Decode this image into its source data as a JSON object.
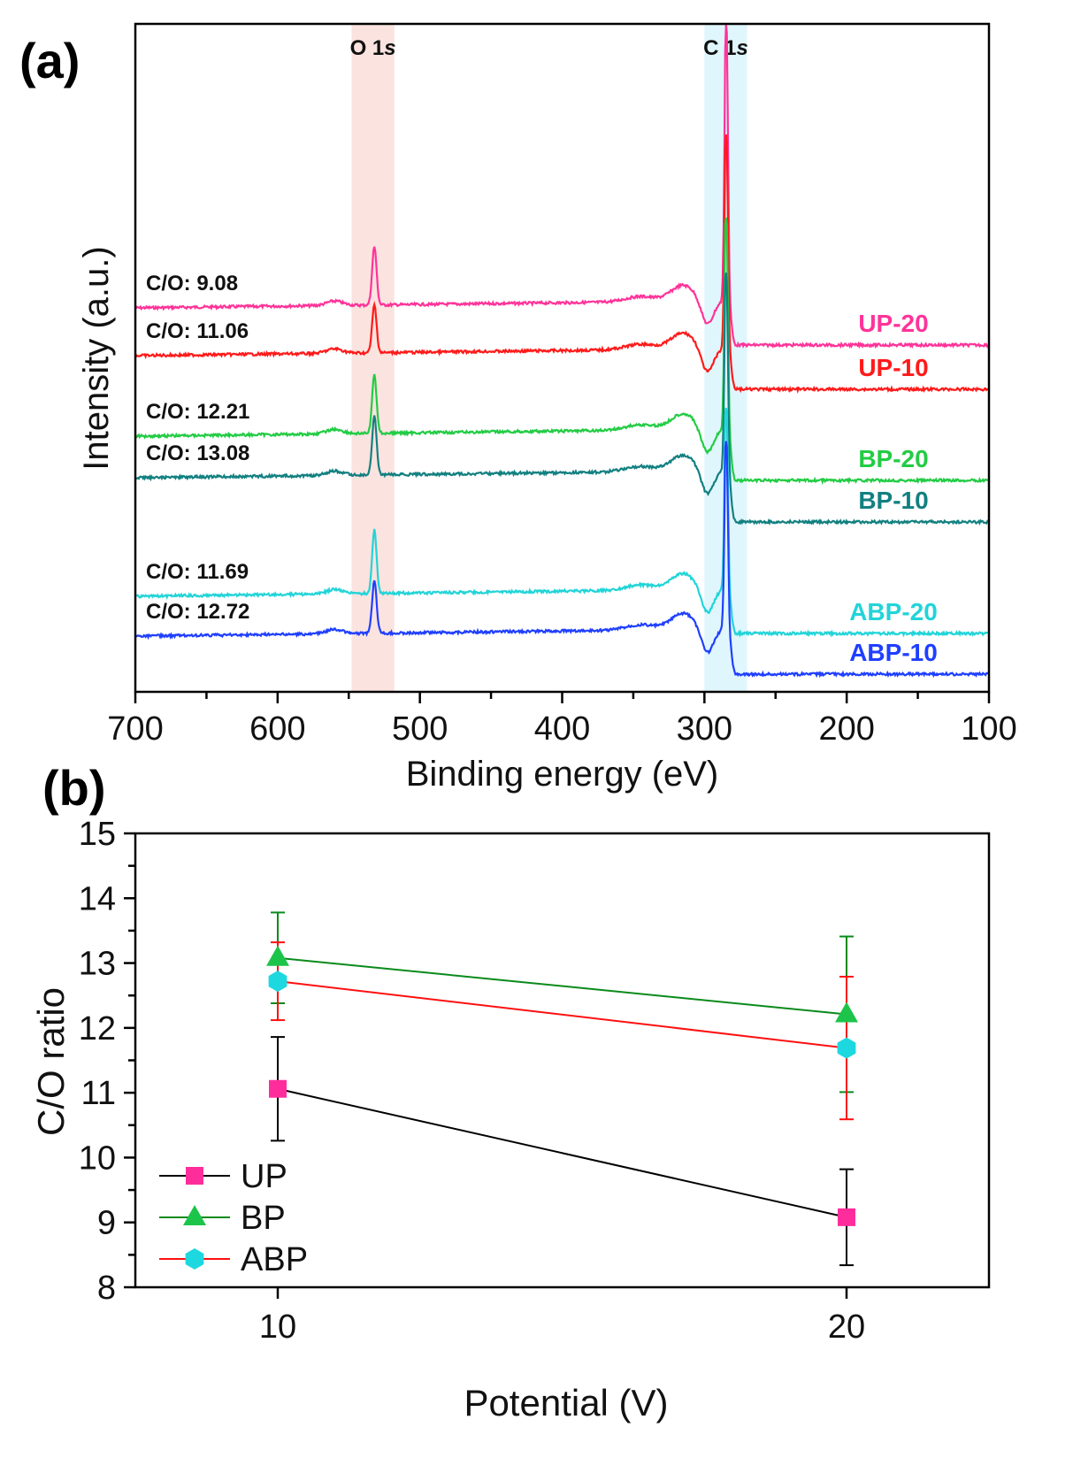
{
  "chart_data": [
    {
      "panel_label": "(a)",
      "type": "line",
      "title": "",
      "xlabel": "Binding energy (eV)",
      "ylabel": "Intensity (a.u.)",
      "xlim": [
        700,
        100
      ],
      "x_reversed": true,
      "x_ticks": [
        700,
        600,
        500,
        400,
        300,
        200,
        100
      ],
      "y_ticks_shown": false,
      "grid": false,
      "highlight_bands": [
        {
          "label": "O 1s",
          "label_main": "O 1",
          "label_italic": "s",
          "range": [
            548,
            518
          ],
          "color": "#fbe3df"
        },
        {
          "label": "C 1s",
          "label_main": "C 1",
          "label_italic": "s",
          "range": [
            300,
            270
          ],
          "color": "#dff6fc"
        }
      ],
      "series": [
        {
          "name": "UP-20",
          "color": "#ff3399",
          "co_label": "C/O: 9.08",
          "baseline_offset": 5,
          "o1s_peak": 0.55,
          "c1s_peak": 4.3
        },
        {
          "name": "UP-10",
          "color": "#ff1a1a",
          "co_label": "C/O: 11.06",
          "baseline_offset": 4.3,
          "o1s_peak": 0.45,
          "c1s_peak": 3.4
        },
        {
          "name": "BP-20",
          "color": "#22cc44",
          "co_label": "C/O: 12.21",
          "baseline_offset": 3.1,
          "o1s_peak": 0.55,
          "c1s_peak": 3.5
        },
        {
          "name": "BP-10",
          "color": "#128080",
          "co_label": "C/O: 13.08",
          "baseline_offset": 2.5,
          "o1s_peak": 0.55,
          "c1s_peak": 3.3
        },
        {
          "name": "ABP-20",
          "color": "#22d4d8",
          "co_label": "C/O: 11.69",
          "baseline_offset": 1.3,
          "o1s_peak": 0.6,
          "c1s_peak": 3.0
        },
        {
          "name": "ABP-10",
          "color": "#1f3fff",
          "co_label": "C/O: 12.72",
          "baseline_offset": 0.7,
          "o1s_peak": 0.5,
          "c1s_peak": 3.1
        }
      ]
    },
    {
      "panel_label": "(b)",
      "type": "line",
      "title": "",
      "xlabel": "Potential (V)",
      "ylabel": "C/O ratio",
      "x": [
        10,
        20
      ],
      "x_ticks": [
        10,
        20
      ],
      "xlim": [
        7.5,
        22.5
      ],
      "ylim": [
        8,
        15
      ],
      "y_ticks": [
        8,
        9,
        10,
        11,
        12,
        13,
        14,
        15
      ],
      "grid": false,
      "legend_position": "bottom-left",
      "series": [
        {
          "name": "UP",
          "marker": "square",
          "marker_color": "#ff2d9b",
          "line_color": "#000000",
          "values": [
            11.06,
            9.08
          ],
          "errors": [
            0.8,
            0.74
          ]
        },
        {
          "name": "BP",
          "marker": "triangle",
          "marker_color": "#1dc44a",
          "line_color": "#0a8a1a",
          "values": [
            13.08,
            12.21
          ],
          "errors": [
            0.7,
            1.2
          ]
        },
        {
          "name": "ABP",
          "marker": "hexagon",
          "marker_color": "#1ed8e0",
          "line_color": "#ff1010",
          "values": [
            12.72,
            11.69
          ],
          "errors": [
            0.6,
            1.1
          ]
        }
      ]
    }
  ]
}
